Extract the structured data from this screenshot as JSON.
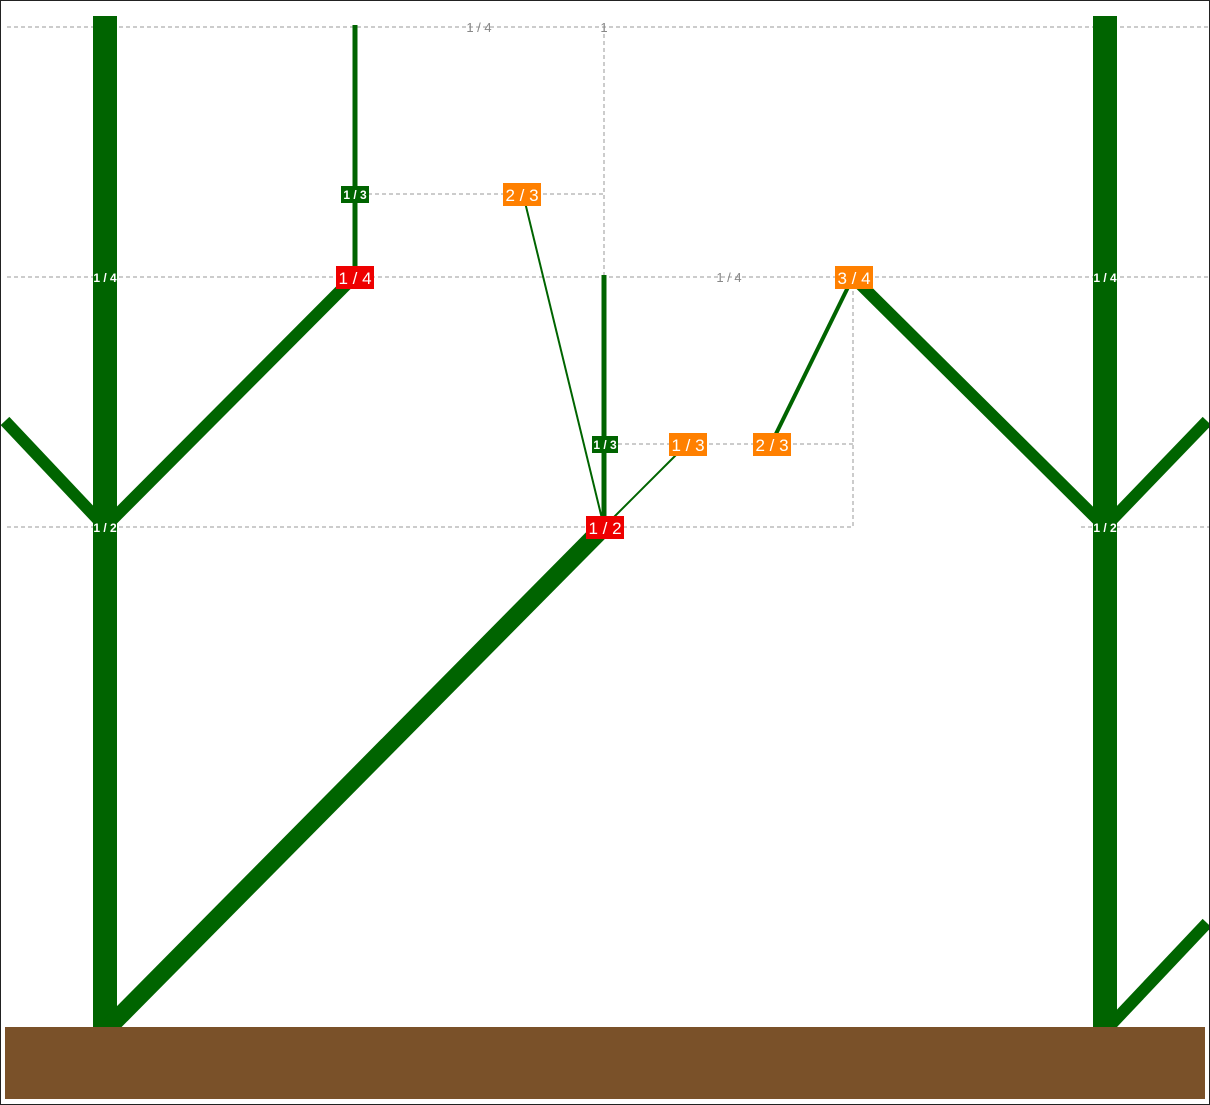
{
  "colors": {
    "branch": "#006400",
    "ground": "#7a5129",
    "red_label": "#ee0000",
    "orange_label": "#ff8000",
    "green_label": "#006400",
    "guide": "#999999"
  },
  "guides": {
    "top_left_quarter": "1 / 4",
    "top_one": "1",
    "middle_quarter": "1 / 4"
  },
  "labels": {
    "left_trunk_quarter": "1 / 4",
    "left_trunk_half": "1 / 2",
    "left_branch_quarter": "1 / 4",
    "left_branch_third": "1 / 3",
    "upper_two_thirds": "2 / 3",
    "center_half": "1 / 2",
    "center_third": "1 / 3",
    "center_one_third": "1 / 3",
    "center_two_thirds": "2 / 3",
    "right_three_quarters": "3 / 4",
    "right_trunk_quarter": "1 / 4",
    "right_trunk_half": "1 / 2"
  }
}
